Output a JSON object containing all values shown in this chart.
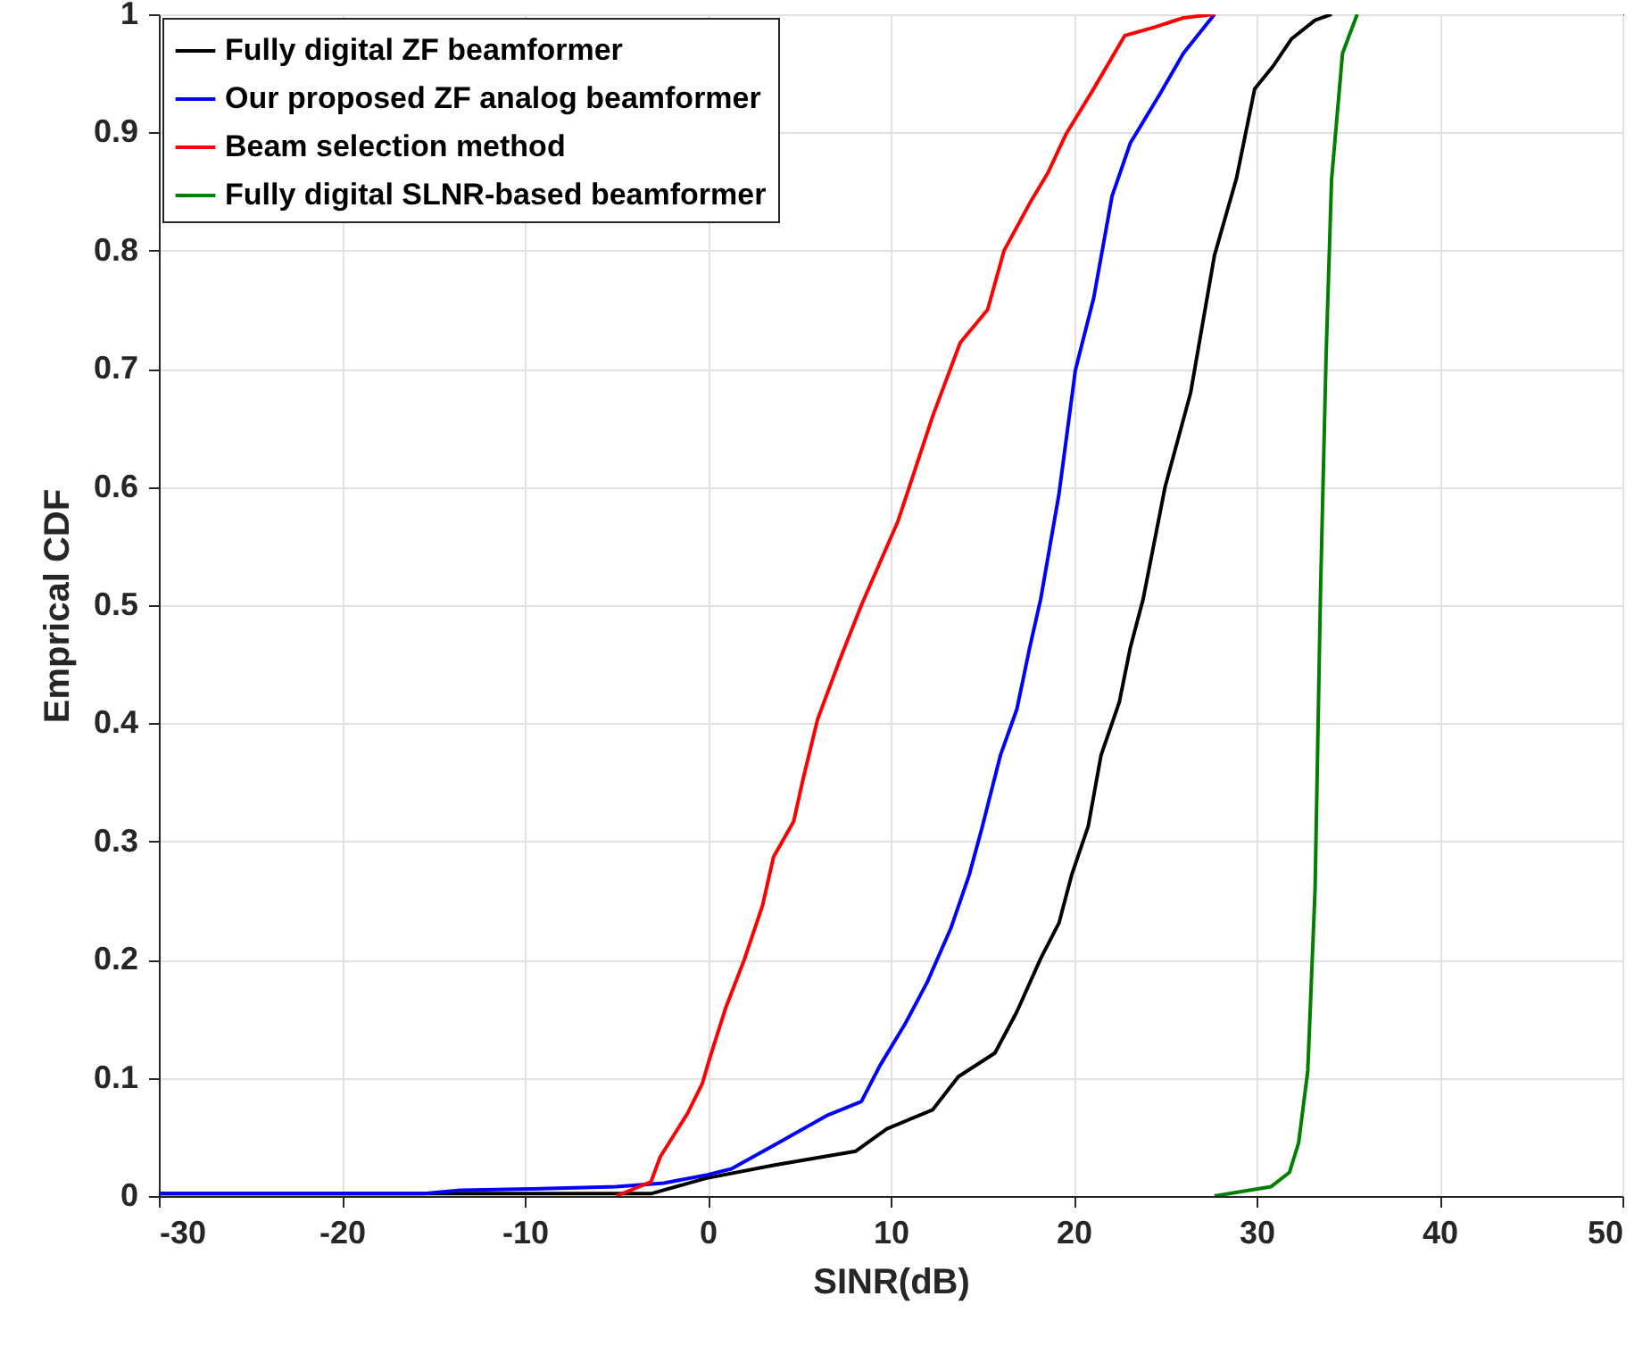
{
  "chart_data": {
    "type": "line",
    "xlabel": "SINR(dB)",
    "ylabel": "Emprical CDF",
    "xlim": [
      -30,
      50
    ],
    "ylim": [
      0,
      1
    ],
    "xticks": [
      -30,
      -20,
      -10,
      0,
      10,
      20,
      30,
      40,
      50
    ],
    "yticks": [
      0,
      0.1,
      0.2,
      0.3,
      0.4,
      0.5,
      0.6,
      0.7,
      0.8,
      0.9,
      1
    ],
    "grid": true,
    "legend": "top left",
    "series": [
      {
        "name": "Fully digital ZF beamformer",
        "color": "#000000",
        "x": [
          -30,
          -3.1,
          -0.1,
          3.6,
          8.1,
          9.8,
          12.3,
          13.7,
          15.7,
          16.9,
          18.2,
          19.2,
          19.9,
          20.8,
          21.5,
          22.5,
          23.1,
          23.8,
          25.0,
          26.4,
          27.7,
          28.9,
          29.9,
          30.9,
          31.9,
          33.2,
          34.1
        ],
        "values": [
          0.002,
          0.002,
          0.015,
          0.026,
          0.038,
          0.057,
          0.073,
          0.101,
          0.121,
          0.156,
          0.201,
          0.231,
          0.272,
          0.313,
          0.373,
          0.418,
          0.464,
          0.505,
          0.6,
          0.68,
          0.796,
          0.861,
          0.937,
          0.956,
          0.979,
          0.995,
          1
        ]
      },
      {
        "name": "Our proposed ZF analog beamformer",
        "color": "#0000ff",
        "x": [
          -30,
          -23.6,
          -15.5,
          -13.5,
          -9.6,
          -5,
          -2.4,
          0,
          1.3,
          4.2,
          6.5,
          8.4,
          9.4,
          10.8,
          12,
          13.3,
          14.3,
          15,
          16,
          16.9,
          17.6,
          18.2,
          19.2,
          20.1,
          21.1,
          22.1,
          23.1,
          24.7,
          26,
          27.7
        ],
        "values": [
          0.002,
          0.002,
          0.002,
          0.005,
          0.006,
          0.008,
          0.011,
          0.018,
          0.023,
          0.048,
          0.068,
          0.08,
          0.11,
          0.146,
          0.181,
          0.227,
          0.272,
          0.312,
          0.373,
          0.412,
          0.464,
          0.505,
          0.594,
          0.699,
          0.76,
          0.846,
          0.891,
          0.932,
          0.967,
          1
        ]
      },
      {
        "name": "Beam selection method",
        "color": "#ff0000",
        "x": [
          -5,
          -3.1,
          -2.6,
          -1.1,
          -0.3,
          0.1,
          1,
          2,
          3,
          3.6,
          4.7,
          5.2,
          6,
          7.2,
          8.4,
          10.4,
          12.3,
          13.8,
          15.3,
          16.2,
          17.6,
          18.6,
          19.6,
          21.1,
          22.8,
          24.4,
          26,
          27.7
        ],
        "values": [
          0,
          0.012,
          0.033,
          0.07,
          0.095,
          0.116,
          0.16,
          0.2,
          0.246,
          0.287,
          0.317,
          0.352,
          0.403,
          0.453,
          0.5,
          0.571,
          0.66,
          0.722,
          0.75,
          0.8,
          0.84,
          0.866,
          0.899,
          0.937,
          0.982,
          0.989,
          0.997,
          1
        ]
      },
      {
        "name": "Fully digital SLNR-based beamformer",
        "color": "#008000",
        "x": [
          27.7,
          30.8,
          31.8,
          32.3,
          32.8,
          33.2,
          33.5,
          33.8,
          34.1,
          34.7,
          35.5
        ],
        "values": [
          0,
          0.008,
          0.02,
          0.045,
          0.106,
          0.26,
          0.514,
          0.71,
          0.86,
          0.967,
          1
        ]
      }
    ]
  }
}
